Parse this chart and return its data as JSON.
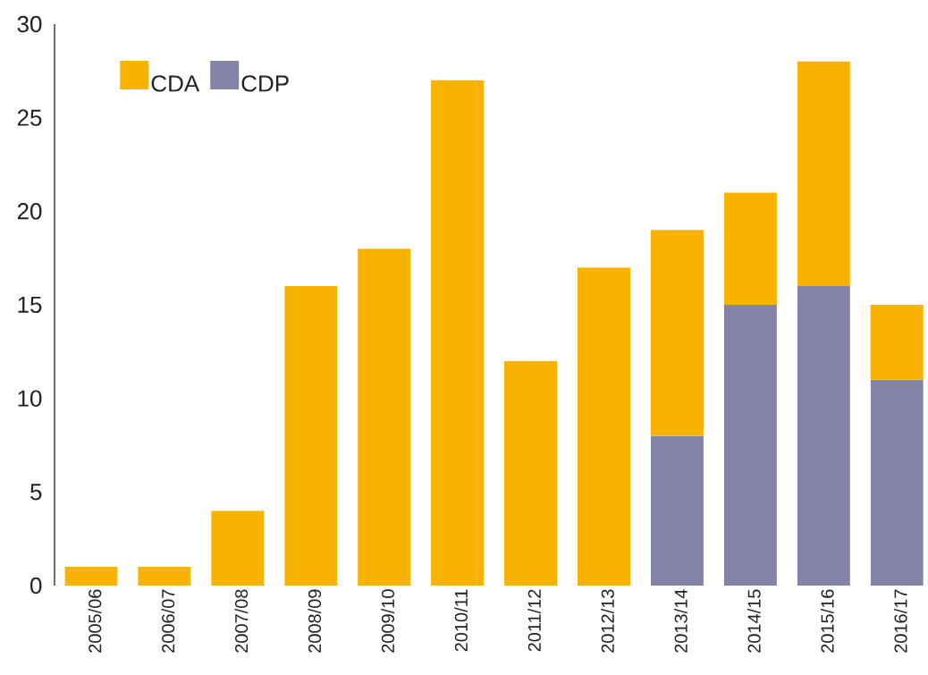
{
  "chart_data": {
    "type": "bar",
    "stacked": true,
    "categories": [
      "2005/06",
      "2006/07",
      "2007/08",
      "2008/09",
      "2009/10",
      "2010/11",
      "2011/12",
      "2012/13",
      "2013/14",
      "2014/15",
      "2015/16",
      "2016/17"
    ],
    "series": [
      {
        "name": "CDP",
        "color": "#8383a8",
        "values": [
          null,
          null,
          null,
          null,
          null,
          null,
          null,
          null,
          8,
          15,
          16,
          11
        ]
      },
      {
        "name": "CDA",
        "color": "#f8b300",
        "values": [
          1,
          1,
          4,
          16,
          18,
          27,
          12,
          17,
          11,
          6,
          12,
          4
        ]
      }
    ],
    "ylim": [
      0,
      30
    ],
    "yticks": [
      0,
      5,
      10,
      15,
      20,
      25,
      30
    ],
    "legend": "top left"
  }
}
